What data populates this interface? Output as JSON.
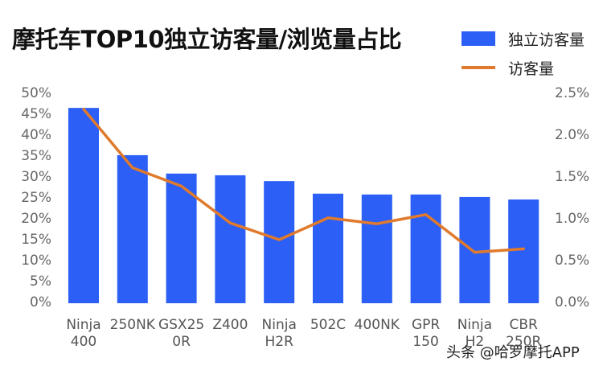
{
  "title": "摩托车TOP10独立访客量/浏览量占比",
  "legend": {
    "bar_label": "独立访客量",
    "line_label": "访客量",
    "bar_color": "#2b5ff5",
    "line_color": "#e07a2c"
  },
  "watermark": "头条 @哈罗摩托APP",
  "axes": {
    "left_ticks": [
      "50%",
      "45%",
      "40%",
      "35%",
      "30%",
      "25%",
      "20%",
      "15%",
      "10%",
      "5%",
      "0%"
    ],
    "right_ticks": [
      "2.5%",
      "2.0%",
      "1.5%",
      "1.0%",
      "0.5%",
      "0.0%"
    ]
  },
  "x_labels": [
    {
      "l1": "Ninja",
      "l2": "400"
    },
    {
      "l1": "250NK",
      "l2": ""
    },
    {
      "l1": "GSX25",
      "l2": "0R"
    },
    {
      "l1": "Z400",
      "l2": ""
    },
    {
      "l1": "Ninja",
      "l2": "H2R"
    },
    {
      "l1": "502C",
      "l2": ""
    },
    {
      "l1": "400NK",
      "l2": ""
    },
    {
      "l1": "GPR",
      "l2": "150"
    },
    {
      "l1": "Ninja",
      "l2": "H2"
    },
    {
      "l1": "CBR",
      "l2": "250R"
    }
  ],
  "chart_data": {
    "type": "bar",
    "title": "摩托车TOP10独立访客量/浏览量占比",
    "categories": [
      "Ninja 400",
      "250NK",
      "GSX250R",
      "Z400",
      "Ninja H2R",
      "502C",
      "400NK",
      "GPR 150",
      "Ninja H2",
      "CBR 250R"
    ],
    "series": [
      {
        "name": "独立访客量",
        "type": "bar",
        "axis": "left",
        "unit": "%",
        "values": [
          46.7,
          35.4,
          31.0,
          30.6,
          29.2,
          26.2,
          26.0,
          26.0,
          25.4,
          24.8
        ]
      },
      {
        "name": "访客量",
        "type": "line",
        "axis": "right",
        "unit": "%",
        "values": [
          2.32,
          1.62,
          1.4,
          0.96,
          0.76,
          1.02,
          0.95,
          1.06,
          0.61,
          0.65
        ]
      }
    ],
    "xlabel": "",
    "ylabel_left": "",
    "ylabel_right": "",
    "ylim_left": [
      0,
      50
    ],
    "ylim_right": [
      0,
      2.5
    ],
    "grid": false,
    "legend_position": "top-right"
  }
}
